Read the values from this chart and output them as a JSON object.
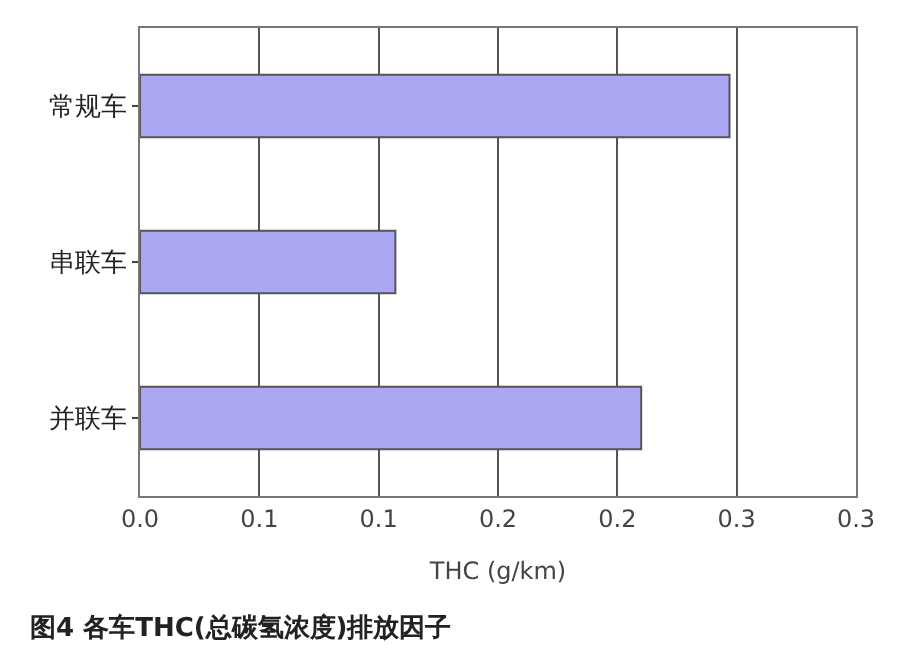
{
  "chart_data": {
    "type": "bar",
    "orientation": "horizontal",
    "title": "图4 各车THC(总碳氢浓度)排放因子",
    "xlabel": "THC (g/km)",
    "categories": [
      "常规车",
      "串联车",
      "并联车"
    ],
    "values": [
      0.247,
      0.107,
      0.21
    ],
    "color": "#aba6f2",
    "xlim": [
      0,
      0.3
    ],
    "xticks": [
      {
        "value": 0,
        "label": "0.0"
      },
      {
        "value": 0.05,
        "label": "0.1"
      },
      {
        "value": 0.1,
        "label": "0.1"
      },
      {
        "value": 0.15,
        "label": "0.2"
      },
      {
        "value": 0.2,
        "label": "0.2"
      },
      {
        "value": 0.25,
        "label": "0.3"
      },
      {
        "value": 0.3,
        "label": "0.3"
      }
    ],
    "grid": "x",
    "legend": false
  }
}
